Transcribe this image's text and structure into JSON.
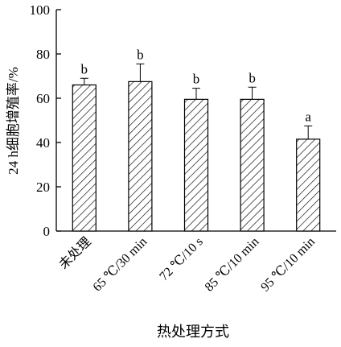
{
  "chart_data": {
    "type": "bar",
    "categories": [
      "未处理",
      "65 ℃/30 min",
      "72 ℃/10 s",
      "85 ℃/10 min",
      "95 ℃/10 min"
    ],
    "values": [
      66,
      67.5,
      59.5,
      59.5,
      41.5
    ],
    "errors": [
      3,
      8,
      5,
      5.5,
      6
    ],
    "significance": [
      "b",
      "b",
      "b",
      "b",
      "a"
    ],
    "ylabel": "24 h细胞增殖率/%",
    "xlabel": "热处理方式",
    "ylim": [
      0,
      100
    ],
    "yticks": [
      0,
      20,
      40,
      60,
      80,
      100
    ],
    "bar_pattern": "diagonal-hatch",
    "grid": false
  }
}
